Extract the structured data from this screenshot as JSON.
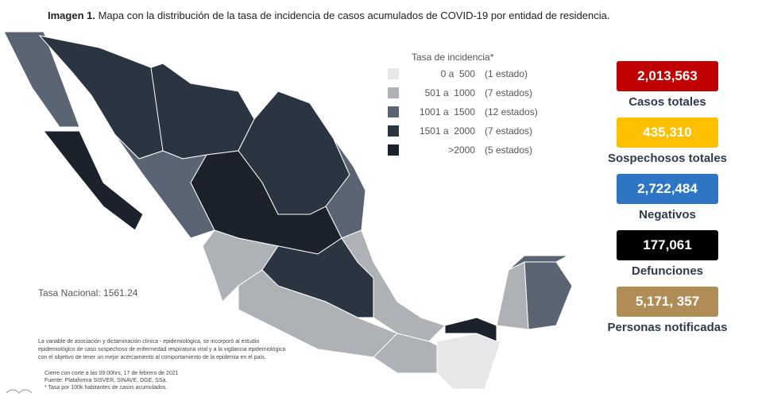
{
  "header": {
    "label": "Imagen 1.",
    "title": "Mapa con la distribución de la tasa de incidencia de casos acumulados de COVID-19 por entidad de residencia."
  },
  "legend": {
    "title": "Tasa de incidencia*",
    "items": [
      {
        "range": "0 a  500",
        "count": "(1 estado)",
        "color": "#e6e7e8"
      },
      {
        "range": "501 a  1000",
        "count": "(7 estados)",
        "color": "#aeb1b6"
      },
      {
        "range": "1001 a  1500",
        "count": "(12 estados)",
        "color": "#5a6473"
      },
      {
        "range": "1501 a  2000",
        "count": "(7 estados)",
        "color": "#2b3441"
      },
      {
        "range": ">2000",
        "count": "(5 estados)",
        "color": "#1b222b"
      }
    ]
  },
  "national_rate": "Tasa Nacional: 1561.24",
  "stats": [
    {
      "value": "2,013,563",
      "label": "Casos totales",
      "color": "#c00000"
    },
    {
      "value": "435,310",
      "label": "Sospechosos totales",
      "color": "#ffc000"
    },
    {
      "value": "2,722,484",
      "label": "Negativos",
      "color": "#2e75c6"
    },
    {
      "value": "177,061",
      "label": "Defunciones",
      "color": "#000000"
    },
    {
      "value": "5,171, 357",
      "label": "Personas notificadas",
      "color": "#b08d57"
    }
  ],
  "notes": [
    "La variable de asociación y dictaminación clínica - epidemiológica, se incorporó al estudio",
    "epidemiológico de caso sospechoso de enfermedad respiratoria viral y a la vigilancia epidemiológica",
    "con el objetivo de tener un mejor acercamiento al comportamiento de la epidemia en el país."
  ],
  "footer": [
    "Cierre con corte a las 09:00hrs, 17 de febrero de 2021",
    "Fuente: Plataforma SISVER, SINAVE, DGE, SSa.",
    "* Tasa por 100k habitantes de casos acumulados."
  ]
}
